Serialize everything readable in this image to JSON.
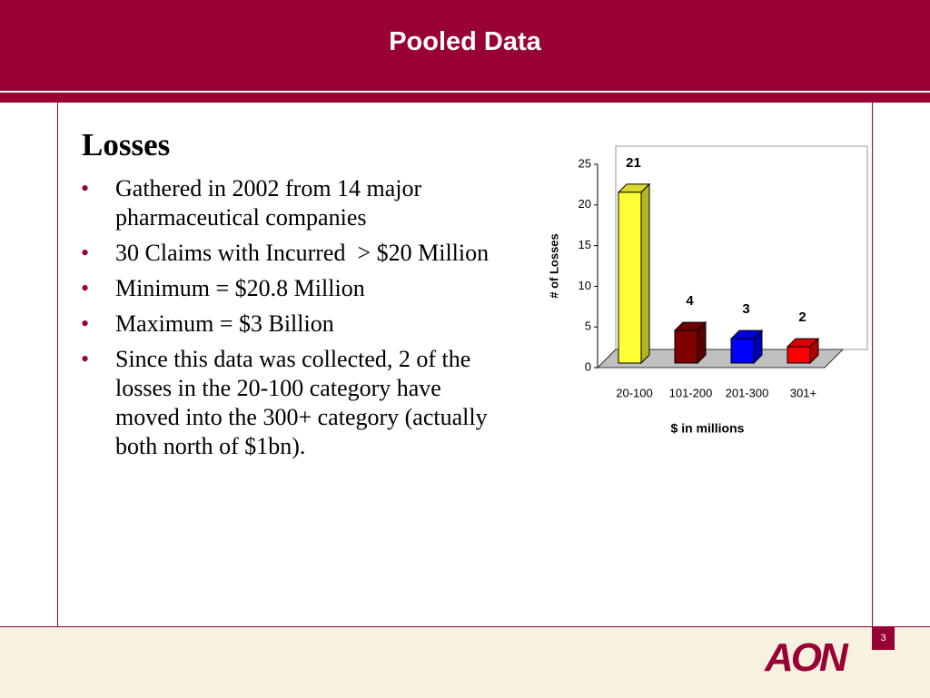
{
  "header": {
    "title": "Pooled Data"
  },
  "body": {
    "heading": "Losses",
    "bullets": [
      "Gathered in 2002 from 14 major pharmaceutical companies",
      "30 Claims with Incurred  > $20 Million",
      "Minimum = $20.8 Million",
      "Maximum = $3 Billion",
      "Since this data was collected, 2 of the losses in the 20-100 category have moved into the 300+ category (actually both north of $1bn)."
    ]
  },
  "chart_data": {
    "type": "bar",
    "y_label": "# of Losses",
    "x_label": "$ in millions",
    "categories": [
      "20-100",
      "101-200",
      "201-300",
      "301+"
    ],
    "values": [
      21,
      4,
      3,
      2
    ],
    "colors": [
      "#ffff33",
      "#800000",
      "#0000ff",
      "#ff0000"
    ],
    "ylim": [
      0,
      25
    ],
    "yticks": [
      0,
      5,
      10,
      15,
      20,
      25
    ]
  },
  "footer": {
    "page": "3",
    "logo": "AON"
  }
}
